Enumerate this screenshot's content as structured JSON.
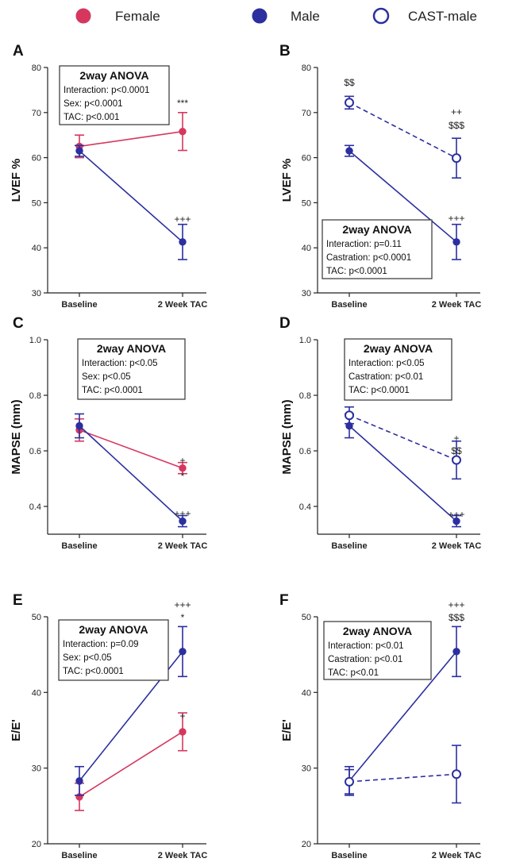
{
  "legend": [
    {
      "label": "Female",
      "color": "#d6375f",
      "filled": true
    },
    {
      "label": "Male",
      "color": "#2b2f9f",
      "filled": true
    },
    {
      "label": "CAST-male",
      "color": "#2b2f9f",
      "filled": false
    }
  ],
  "colors": {
    "female": "#d6375f",
    "male": "#2b2f9f"
  },
  "chart_data": [
    {
      "panel": "A",
      "type": "line",
      "ylabel": "LVEF %",
      "ylim": [
        30,
        80
      ],
      "yticks": [
        "30",
        "40",
        "50",
        "60",
        "70",
        "80"
      ],
      "categories": [
        "Baseline",
        "2 Week TAC"
      ],
      "series": [
        {
          "name": "Female",
          "values": [
            62.5,
            65.8
          ],
          "err": [
            2.5,
            4.2
          ]
        },
        {
          "name": "Male",
          "values": [
            61.5,
            41.3
          ],
          "err": [
            1.2,
            3.9
          ]
        }
      ],
      "anova": {
        "title": "2way ANOVA",
        "lines": [
          "Interaction: p<0.0001",
          "Sex: p<0.0001",
          "TAC: p<0.001"
        ]
      },
      "annotations": [
        "***",
        "+++"
      ]
    },
    {
      "panel": "B",
      "type": "line",
      "ylabel": "LVEF %",
      "ylim": [
        30,
        80
      ],
      "yticks": [
        "30",
        "40",
        "50",
        "60",
        "70",
        "80"
      ],
      "categories": [
        "Baseline",
        "2 Week TAC"
      ],
      "series": [
        {
          "name": "Male",
          "values": [
            61.5,
            41.3
          ],
          "err": [
            1.2,
            3.9
          ]
        },
        {
          "name": "CAST-male",
          "values": [
            72.2,
            59.9
          ],
          "err": [
            1.4,
            4.4
          ]
        }
      ],
      "anova": {
        "title": "2way ANOVA",
        "lines": [
          "Interaction: p=0.11",
          "Castration: p<0.0001",
          "TAC: p<0.0001"
        ]
      },
      "annotations": [
        "$$",
        "++",
        "$$$",
        "+++"
      ]
    },
    {
      "panel": "C",
      "type": "line",
      "ylabel": "MAPSE (mm)",
      "ylim": [
        0.3,
        1.0
      ],
      "yticks": [
        "0.4",
        "0.6",
        "0.8",
        "1.0"
      ],
      "categories": [
        "Baseline",
        "2 Week TAC"
      ],
      "series": [
        {
          "name": "Female",
          "values": [
            0.675,
            0.538
          ],
          "err": [
            0.04,
            0.02
          ]
        },
        {
          "name": "Male",
          "values": [
            0.69,
            0.347
          ],
          "err": [
            0.043,
            0.02
          ]
        }
      ],
      "anova": {
        "title": "2way ANOVA",
        "lines": [
          "Interaction: p<0.05",
          "Sex: p<0.05",
          "TAC: p<0.0001"
        ]
      },
      "annotations": [
        "+",
        "*",
        "+++"
      ]
    },
    {
      "panel": "D",
      "type": "line",
      "ylabel": "MAPSE (mm)",
      "ylim": [
        0.3,
        1.0
      ],
      "yticks": [
        "0.4",
        "0.6",
        "0.8",
        "1.0"
      ],
      "categories": [
        "Baseline",
        "2 Week TAC"
      ],
      "series": [
        {
          "name": "Male",
          "values": [
            0.69,
            0.347
          ],
          "err": [
            0.043,
            0.02
          ]
        },
        {
          "name": "CAST-male",
          "values": [
            0.728,
            0.567
          ],
          "err": [
            0.03,
            0.068
          ]
        }
      ],
      "anova": {
        "title": "2way ANOVA",
        "lines": [
          "Interaction: p<0.05",
          "Castration: p<0.01",
          "TAC: p<0.0001"
        ]
      },
      "annotations": [
        "+",
        "$$",
        "+++"
      ]
    },
    {
      "panel": "E",
      "type": "line",
      "ylabel": "E/E'",
      "ylim": [
        20,
        50
      ],
      "yticks": [
        "20",
        "30",
        "40",
        "50"
      ],
      "categories": [
        "Baseline",
        "2 Week TAC"
      ],
      "series": [
        {
          "name": "Female",
          "values": [
            26.2,
            34.8
          ],
          "err": [
            1.8,
            2.5
          ]
        },
        {
          "name": "Male",
          "values": [
            28.3,
            45.4
          ],
          "err": [
            1.9,
            3.3
          ]
        }
      ],
      "anova": {
        "title": "2way ANOVA",
        "lines": [
          "Interaction: p=0.09",
          "Sex: p<0.05",
          "TAC: p<0.0001"
        ]
      },
      "annotations": [
        "+++",
        "*",
        "+"
      ]
    },
    {
      "panel": "F",
      "type": "line",
      "ylabel": "E/E'",
      "ylim": [
        20,
        50
      ],
      "yticks": [
        "20",
        "30",
        "40",
        "50"
      ],
      "categories": [
        "Baseline",
        "2 Week TAC"
      ],
      "series": [
        {
          "name": "Male",
          "values": [
            28.3,
            45.4
          ],
          "err": [
            1.9,
            3.3
          ]
        },
        {
          "name": "CAST-male",
          "values": [
            28.2,
            29.2
          ],
          "err": [
            1.6,
            3.8
          ]
        }
      ],
      "anova": {
        "title": "2way ANOVA",
        "lines": [
          "Interaction: p<0.01",
          "Castration: p<0.01",
          "TAC: p<0.01"
        ]
      },
      "annotations": [
        "+++",
        "$$$"
      ]
    }
  ]
}
